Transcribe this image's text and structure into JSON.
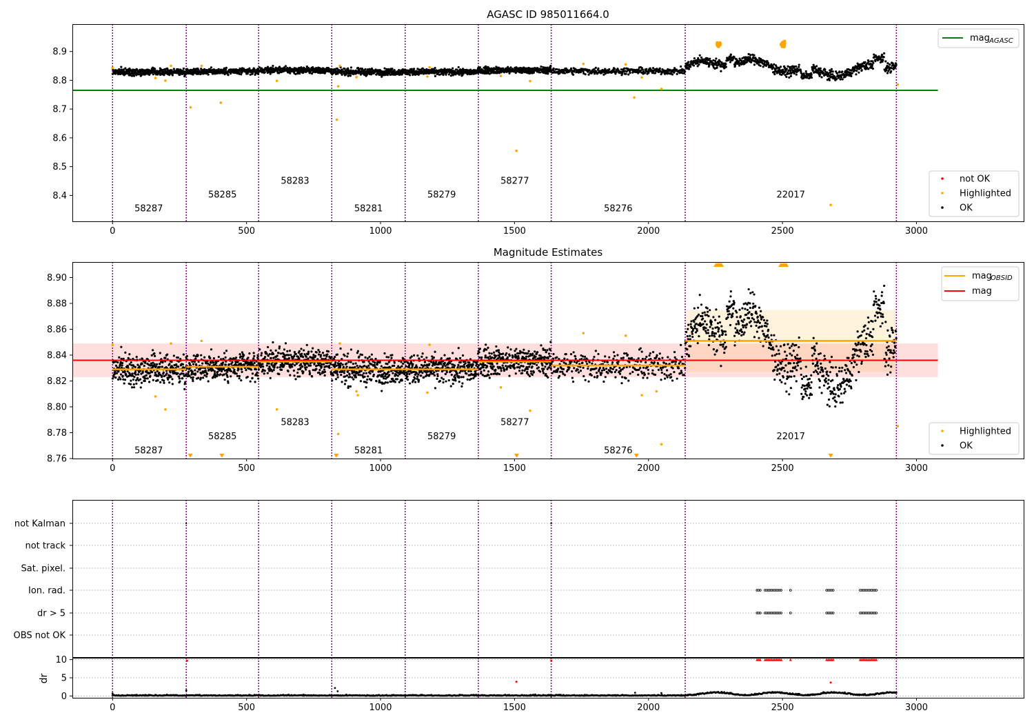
{
  "figure": {
    "title": "AGASC ID 985011664.0",
    "colors": {
      "ok": "#000000",
      "highlighted": "#ffa500",
      "not_ok": "#ff0000",
      "mag_agasc": "#008000",
      "mag_obsid": "#ffa500",
      "mag": "#ff0000",
      "obs_boundary": "#800080",
      "band_red": "#ff000024",
      "band_orange": "#ffa50024",
      "grid": "#b0b0b0"
    }
  },
  "chart_data": [
    {
      "id": "agasc",
      "type": "scatter",
      "title": "AGASC ID 985011664.0",
      "xlim": [
        -150,
        3400
      ],
      "ylim": [
        8.31,
        8.995
      ],
      "xticks": [
        0,
        500,
        1000,
        1500,
        2000,
        2500,
        3000
      ],
      "yticks": [
        8.4,
        8.5,
        8.6,
        8.7,
        8.8,
        8.9
      ],
      "grid": false,
      "legend_upper": {
        "position": "top-right",
        "entries": [
          {
            "label": "mag",
            "subscript": "AGASC",
            "color": "#008000",
            "kind": "line"
          }
        ]
      },
      "legend_lower": {
        "position": "bottom-right",
        "entries": [
          {
            "label": "not OK",
            "color": "#ff0000"
          },
          {
            "label": "Highlighted",
            "color": "#ffa500"
          },
          {
            "label": "OK",
            "color": "#000000"
          }
        ]
      },
      "mag_agasc": {
        "value": 8.765,
        "x": [
          -150,
          3080
        ]
      },
      "obs_boundaries": [
        0,
        275,
        545,
        818,
        1092,
        1365,
        1637,
        2137,
        2925
      ],
      "obsid_labels": [
        {
          "text": "58287",
          "x": 135,
          "y": 8.345
        },
        {
          "text": "58285",
          "x": 410,
          "y": 8.393
        },
        {
          "text": "58283",
          "x": 681,
          "y": 8.441
        },
        {
          "text": "58281",
          "x": 955,
          "y": 8.345
        },
        {
          "text": "58279",
          "x": 1228,
          "y": 8.393
        },
        {
          "text": "58277",
          "x": 1501,
          "y": 8.441
        },
        {
          "text": "58276",
          "x": 1887,
          "y": 8.345
        },
        {
          "text": "22017",
          "x": 2531,
          "y": 8.393
        }
      ],
      "highlighted_points": [
        [
          0,
          8.843
        ],
        [
          160,
          8.808
        ],
        [
          197,
          8.799
        ],
        [
          218,
          8.85
        ],
        [
          291,
          8.706
        ],
        [
          332,
          8.85
        ],
        [
          404,
          8.722
        ],
        [
          613,
          8.798
        ],
        [
          837,
          8.663
        ],
        [
          842,
          8.779
        ],
        [
          848,
          8.85
        ],
        [
          910,
          8.811
        ],
        [
          1175,
          8.813
        ],
        [
          1183,
          8.845
        ],
        [
          1449,
          8.815
        ],
        [
          1507,
          8.555
        ],
        [
          1558,
          8.797
        ],
        [
          1757,
          8.857
        ],
        [
          1915,
          8.855
        ],
        [
          1947,
          8.74
        ],
        [
          1975,
          8.81
        ],
        [
          2048,
          8.77
        ],
        [
          2680,
          8.367
        ],
        [
          2930,
          8.785
        ]
      ],
      "highlighted_clusters": [
        {
          "x": 2262,
          "y": 8.925,
          "count": 22
        },
        {
          "x": 2504,
          "y": 8.925,
          "count": 30
        }
      ]
    },
    {
      "id": "estimates",
      "type": "scatter",
      "title": "Magnitude Estimates",
      "xlim": [
        -150,
        3400
      ],
      "ylim": [
        8.76,
        8.912
      ],
      "xticks": [
        0,
        500,
        1000,
        1500,
        2000,
        2500,
        3000
      ],
      "yticks": [
        8.76,
        8.78,
        8.8,
        8.82,
        8.84,
        8.86,
        8.88,
        8.9
      ],
      "grid": false,
      "legend_upper": {
        "position": "top-right",
        "entries": [
          {
            "label": "mag",
            "subscript": "OBSID",
            "color": "#ffa500",
            "kind": "line"
          },
          {
            "label": "mag",
            "subscript": "",
            "color": "#ff0000",
            "kind": "line"
          }
        ]
      },
      "legend_lower": {
        "position": "bottom-right",
        "entries": [
          {
            "label": "Highlighted",
            "color": "#ffa500"
          },
          {
            "label": "OK",
            "color": "#000000"
          }
        ]
      },
      "mag": {
        "value": 8.836,
        "band": [
          8.823,
          8.849
        ],
        "x": [
          -150,
          3080
        ]
      },
      "mag_obsid": [
        {
          "x0": 0,
          "x1": 275,
          "value": 8.829
        },
        {
          "x0": 275,
          "x1": 545,
          "value": 8.831
        },
        {
          "x0": 545,
          "x1": 818,
          "value": 8.835
        },
        {
          "x0": 818,
          "x1": 1092,
          "value": 8.829
        },
        {
          "x0": 1092,
          "x1": 1365,
          "value": 8.829
        },
        {
          "x0": 1365,
          "x1": 1637,
          "value": 8.835
        },
        {
          "x0": 1637,
          "x1": 2137,
          "value": 8.832
        },
        {
          "x0": 2137,
          "x1": 2925,
          "value": 8.851,
          "band": [
            8.827,
            8.875
          ]
        }
      ],
      "obs_boundaries": [
        0,
        275,
        545,
        818,
        1092,
        1365,
        1637,
        2137,
        2925
      ],
      "obsid_labels": [
        {
          "text": "58287",
          "x": 135,
          "y": 8.764
        },
        {
          "text": "58285",
          "x": 410,
          "y": 8.775
        },
        {
          "text": "58283",
          "x": 681,
          "y": 8.786
        },
        {
          "text": "58281",
          "x": 955,
          "y": 8.764
        },
        {
          "text": "58279",
          "x": 1228,
          "y": 8.775
        },
        {
          "text": "58277",
          "x": 1501,
          "y": 8.786
        },
        {
          "text": "58276",
          "x": 1887,
          "y": 8.764
        },
        {
          "text": "22017",
          "x": 2531,
          "y": 8.775
        }
      ],
      "highlighted_points": [
        [
          0,
          8.848
        ],
        [
          160,
          8.808
        ],
        [
          197,
          8.798
        ],
        [
          218,
          8.849
        ],
        [
          332,
          8.851
        ],
        [
          613,
          8.798
        ],
        [
          842,
          8.779
        ],
        [
          848,
          8.849
        ],
        [
          910,
          8.812
        ],
        [
          915,
          8.809
        ],
        [
          1175,
          8.811
        ],
        [
          1183,
          8.848
        ],
        [
          1449,
          8.815
        ],
        [
          1558,
          8.797
        ],
        [
          1757,
          8.857
        ],
        [
          1915,
          8.855
        ],
        [
          1975,
          8.809
        ],
        [
          2030,
          8.812
        ],
        [
          2048,
          8.771
        ],
        [
          2930,
          8.785
        ]
      ],
      "clipped_low_x": [
        290,
        408,
        835,
        1508,
        1955,
        2680
      ],
      "clipped_high_x": [
        2262,
        2504
      ]
    },
    {
      "id": "flags",
      "type": "scatter",
      "xlim": [
        -150,
        3400
      ],
      "xticks": [
        0,
        500,
        1000,
        1500,
        2000,
        2500,
        3000
      ],
      "categories": [
        "not Kalman",
        "not track",
        "Sat. pixel.",
        "Ion. rad.",
        "dr > 5",
        "OBS not OK"
      ],
      "grid": true,
      "obs_boundaries": [
        0,
        275,
        545,
        818,
        1092,
        1365,
        1637,
        2137,
        2925
      ],
      "flag_points": [
        {
          "category": "not Kalman",
          "x": [
            275,
            1637
          ]
        },
        {
          "category": "Ion. rad.",
          "ranges": [
            [
              2405,
              2500
            ],
            [
              2530,
              2535
            ],
            [
              2665,
              2690
            ],
            [
              2790,
              2850
            ]
          ]
        },
        {
          "category": "dr > 5",
          "ranges": [
            [
              2405,
              2500
            ],
            [
              2530,
              2535
            ],
            [
              2665,
              2690
            ],
            [
              2790,
              2850
            ]
          ]
        }
      ]
    },
    {
      "id": "dr",
      "type": "scatter",
      "ylabel": "dr",
      "xlim": [
        -150,
        3400
      ],
      "ylim": [
        -0.5,
        10.5
      ],
      "xticks": [
        0,
        500,
        1000,
        1500,
        2000,
        2500,
        3000
      ],
      "yticks": [
        0,
        5,
        10
      ],
      "clip_value": 10,
      "grid": true,
      "obs_boundaries": [
        0,
        275,
        545,
        818,
        1092,
        1365,
        1637,
        2137,
        2925
      ],
      "not_ok_points": [
        [
          1507,
          3.9
        ],
        [
          2680,
          3.7
        ],
        [
          278,
          9.7
        ],
        [
          1637,
          9.7
        ]
      ],
      "not_ok_clipped_ranges": [
        [
          2405,
          2500
        ],
        [
          2530,
          2535
        ],
        [
          2665,
          2690
        ],
        [
          2790,
          2850
        ]
      ],
      "ok_outliers": [
        [
          0,
          0.7
        ],
        [
          275,
          1.5
        ],
        [
          830,
          2.2
        ],
        [
          840,
          1.3
        ],
        [
          1950,
          0.9
        ],
        [
          2048,
          0.8
        ]
      ]
    }
  ]
}
